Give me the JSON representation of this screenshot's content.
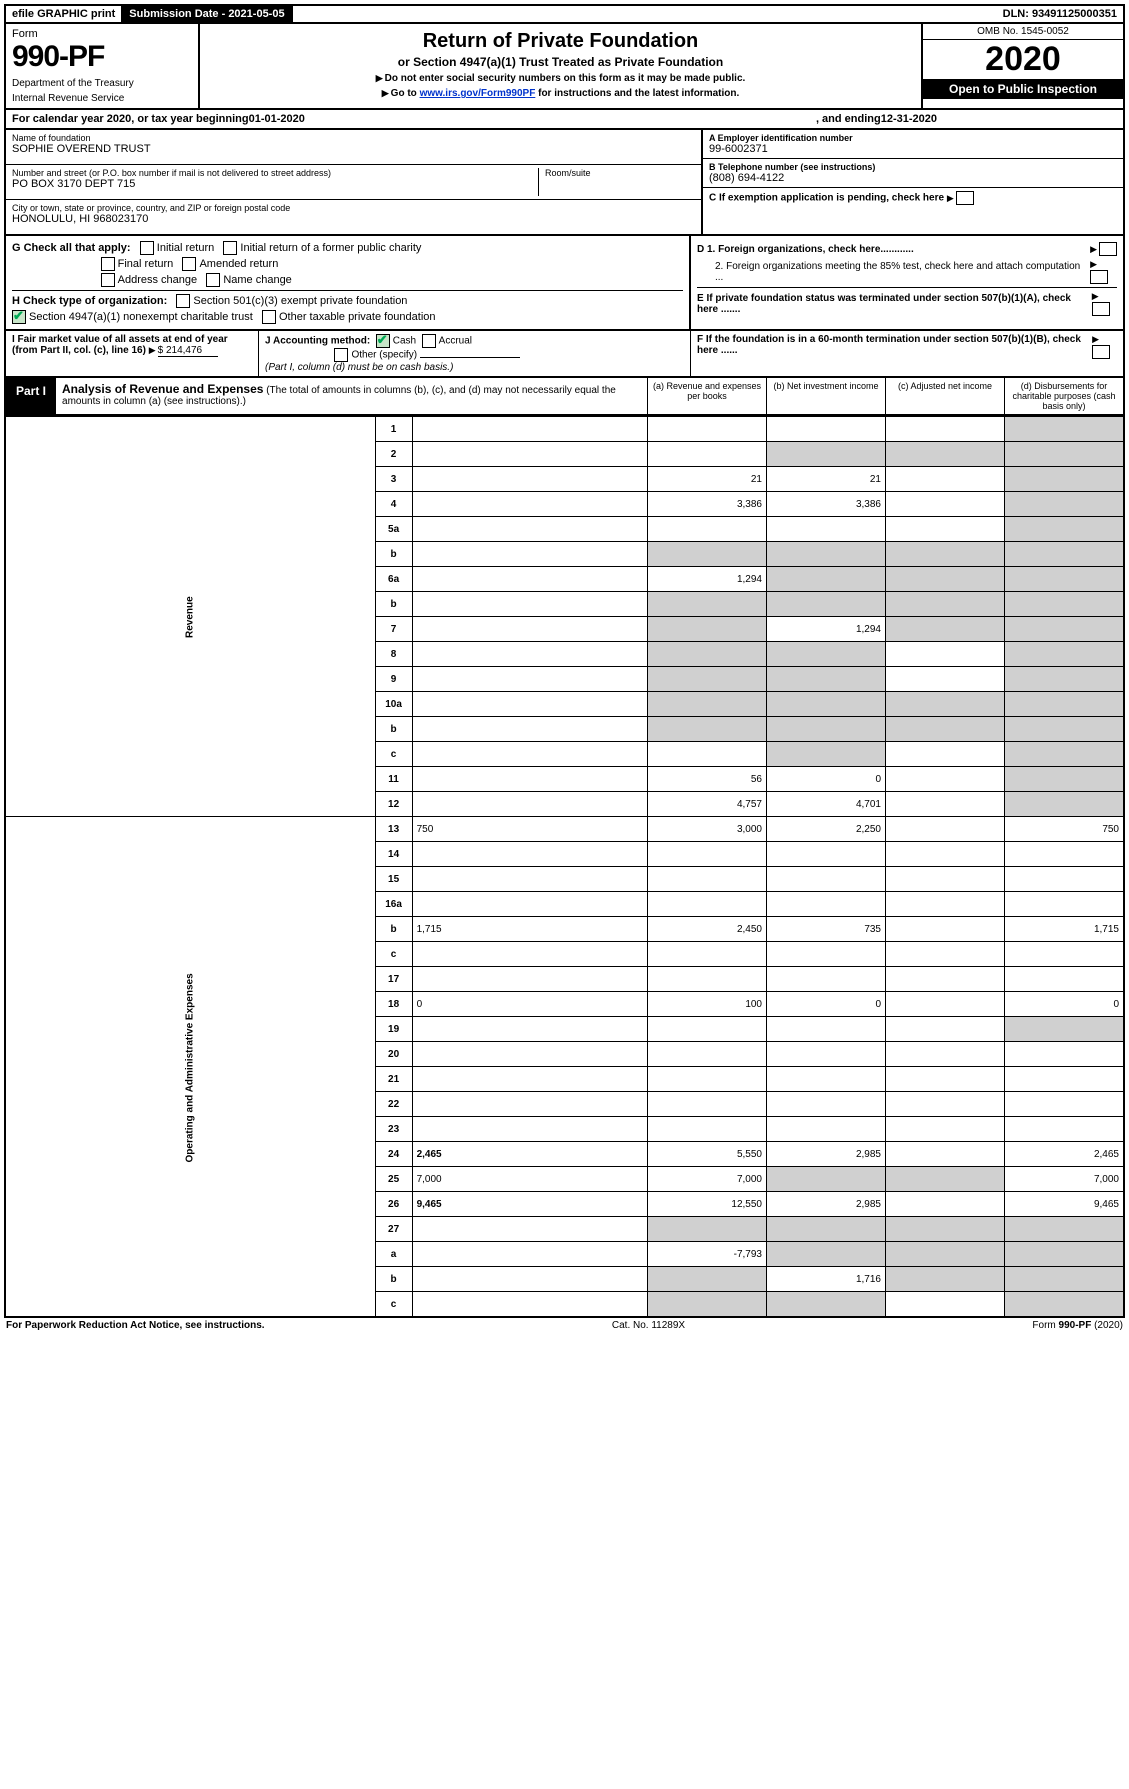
{
  "topbar": {
    "efile": "efile GRAPHIC print",
    "subdate_label": "Submission Date - 2021-05-05",
    "dln": "DLN: 93491125000351"
  },
  "header": {
    "form_label": "Form",
    "form_number": "990-PF",
    "dept": "Department of the Treasury",
    "irs": "Internal Revenue Service",
    "title": "Return of Private Foundation",
    "subtitle": "or Section 4947(a)(1) Trust Treated as Private Foundation",
    "warn1": "Do not enter social security numbers on this form as it may be made public.",
    "warn2_pre": "Go to ",
    "warn2_link": "www.irs.gov/Form990PF",
    "warn2_post": " for instructions and the latest information.",
    "omb": "OMB No. 1545-0052",
    "year": "2020",
    "open": "Open to Public Inspection"
  },
  "calendar": {
    "text_pre": "For calendar year 2020, or tax year beginning ",
    "begin": "01-01-2020",
    "text_mid": ", and ending ",
    "end": "12-31-2020"
  },
  "entity": {
    "name_lbl": "Name of foundation",
    "name": "SOPHIE OVEREND TRUST",
    "addr_lbl": "Number and street (or P.O. box number if mail is not delivered to street address)",
    "addr": "PO BOX 3170 DEPT 715",
    "room_lbl": "Room/suite",
    "room": "",
    "city_lbl": "City or town, state or province, country, and ZIP or foreign postal code",
    "city": "HONOLULU, HI  968023170",
    "ein_lbl": "A Employer identification number",
    "ein": "99-6002371",
    "tel_lbl": "B Telephone number (see instructions)",
    "tel": "(808) 694-4122",
    "c_lbl": "C If exemption application is pending, check here",
    "d1": "D 1. Foreign organizations, check here............",
    "d2": "2. Foreign organizations meeting the 85% test, check here and attach computation ...",
    "e": "E  If private foundation status was terminated under section 507(b)(1)(A), check here .......",
    "f": "F  If the foundation is in a 60-month termination under section 507(b)(1)(B), check here ......"
  },
  "g": {
    "label": "G Check all that apply:",
    "initial": "Initial return",
    "initial_former": "Initial return of a former public charity",
    "final": "Final return",
    "amended": "Amended return",
    "addr_change": "Address change",
    "name_change": "Name change"
  },
  "h": {
    "label": "H Check type of organization:",
    "opt1": "Section 501(c)(3) exempt private foundation",
    "opt2": "Section 4947(a)(1) nonexempt charitable trust",
    "opt3": "Other taxable private foundation"
  },
  "i": {
    "label": "I Fair market value of all assets at end of year (from Part II, col. (c), line 16)",
    "value": "$  214,476"
  },
  "j": {
    "label": "J Accounting method:",
    "cash": "Cash",
    "accrual": "Accrual",
    "other": "Other (specify)",
    "note": "(Part I, column (d) must be on cash basis.)"
  },
  "part1": {
    "tag": "Part I",
    "title": "Analysis of Revenue and Expenses",
    "title_note": "(The total of amounts in columns (b), (c), and (d) may not necessarily equal the amounts in column (a) (see instructions).)",
    "col_a": "(a)   Revenue and expenses per books",
    "col_b": "(b)  Net investment income",
    "col_c": "(c)  Adjusted net income",
    "col_d": "(d)  Disbursements for charitable purposes (cash basis only)"
  },
  "sections": {
    "revenue": "Revenue",
    "expenses": "Operating and Administrative Expenses"
  },
  "rows": [
    {
      "n": "1",
      "d": "",
      "a": "",
      "b": "",
      "c": "",
      "sa": false,
      "sd": true
    },
    {
      "n": "2",
      "d": "",
      "a": "",
      "b": "",
      "c": "",
      "sa": false,
      "sd": true,
      "shade_bcd": true
    },
    {
      "n": "3",
      "d": "",
      "a": "21",
      "b": "21",
      "c": "",
      "sd": true
    },
    {
      "n": "4",
      "d": "",
      "a": "3,386",
      "b": "3,386",
      "c": "",
      "sd": true
    },
    {
      "n": "5a",
      "d": "",
      "a": "",
      "b": "",
      "c": "",
      "sd": true
    },
    {
      "n": "b",
      "d": "",
      "a": "",
      "b": "",
      "c": "",
      "shade_all": true
    },
    {
      "n": "6a",
      "d": "",
      "a": "1,294",
      "b": "",
      "c": "",
      "sb": true,
      "sc": true,
      "sd": true
    },
    {
      "n": "b",
      "d": "",
      "a": "",
      "b": "",
      "c": "",
      "shade_all": true
    },
    {
      "n": "7",
      "d": "",
      "a": "",
      "b": "1,294",
      "c": "",
      "sa": true,
      "sc": true,
      "sd": true
    },
    {
      "n": "8",
      "d": "",
      "a": "",
      "b": "",
      "c": "",
      "sa": true,
      "sb": true,
      "sd": true
    },
    {
      "n": "9",
      "d": "",
      "a": "",
      "b": "",
      "c": "",
      "sa": true,
      "sb": true,
      "sd": true
    },
    {
      "n": "10a",
      "d": "",
      "a": "",
      "b": "",
      "c": "",
      "shade_all": true
    },
    {
      "n": "b",
      "d": "",
      "a": "",
      "b": "",
      "c": "",
      "shade_all": true
    },
    {
      "n": "c",
      "d": "",
      "a": "",
      "b": "",
      "c": "",
      "sb": true,
      "sd": true
    },
    {
      "n": "11",
      "d": "",
      "a": "56",
      "b": "0",
      "c": "",
      "sd": true
    },
    {
      "n": "12",
      "d": "",
      "a": "4,757",
      "b": "4,701",
      "c": "",
      "bold": true,
      "sd": true
    }
  ],
  "exp_rows": [
    {
      "n": "13",
      "d": "750",
      "a": "3,000",
      "b": "2,250",
      "c": ""
    },
    {
      "n": "14",
      "d": "",
      "a": "",
      "b": "",
      "c": ""
    },
    {
      "n": "15",
      "d": "",
      "a": "",
      "b": "",
      "c": ""
    },
    {
      "n": "16a",
      "d": "",
      "a": "",
      "b": "",
      "c": ""
    },
    {
      "n": "b",
      "d": "1,715",
      "a": "2,450",
      "b": "735",
      "c": ""
    },
    {
      "n": "c",
      "d": "",
      "a": "",
      "b": "",
      "c": ""
    },
    {
      "n": "17",
      "d": "",
      "a": "",
      "b": "",
      "c": ""
    },
    {
      "n": "18",
      "d": "0",
      "a": "100",
      "b": "0",
      "c": ""
    },
    {
      "n": "19",
      "d": "",
      "a": "",
      "b": "",
      "c": "",
      "sd": true
    },
    {
      "n": "20",
      "d": "",
      "a": "",
      "b": "",
      "c": ""
    },
    {
      "n": "21",
      "d": "",
      "a": "",
      "b": "",
      "c": ""
    },
    {
      "n": "22",
      "d": "",
      "a": "",
      "b": "",
      "c": ""
    },
    {
      "n": "23",
      "d": "",
      "a": "",
      "b": "",
      "c": ""
    },
    {
      "n": "24",
      "d": "2,465",
      "a": "5,550",
      "b": "2,985",
      "c": "",
      "bold": true
    },
    {
      "n": "25",
      "d": "7,000",
      "a": "7,000",
      "b": "",
      "c": "",
      "sb": true,
      "sc": true
    },
    {
      "n": "26",
      "d": "9,465",
      "a": "12,550",
      "b": "2,985",
      "c": "",
      "bold": true
    },
    {
      "n": "27",
      "d": "",
      "a": "",
      "b": "",
      "c": "",
      "shade_all": true
    },
    {
      "n": "a",
      "d": "",
      "a": "-7,793",
      "b": "",
      "c": "",
      "bold": true,
      "sb": true,
      "sc": true,
      "sd": true
    },
    {
      "n": "b",
      "d": "",
      "a": "",
      "b": "1,716",
      "c": "",
      "bold": true,
      "sa": true,
      "sc": true,
      "sd": true
    },
    {
      "n": "c",
      "d": "",
      "a": "",
      "b": "",
      "c": "",
      "bold": true,
      "sa": true,
      "sb": true,
      "sd": true
    }
  ],
  "footer": {
    "left": "For Paperwork Reduction Act Notice, see instructions.",
    "mid": "Cat. No. 11289X",
    "right": "Form 990-PF (2020)"
  }
}
